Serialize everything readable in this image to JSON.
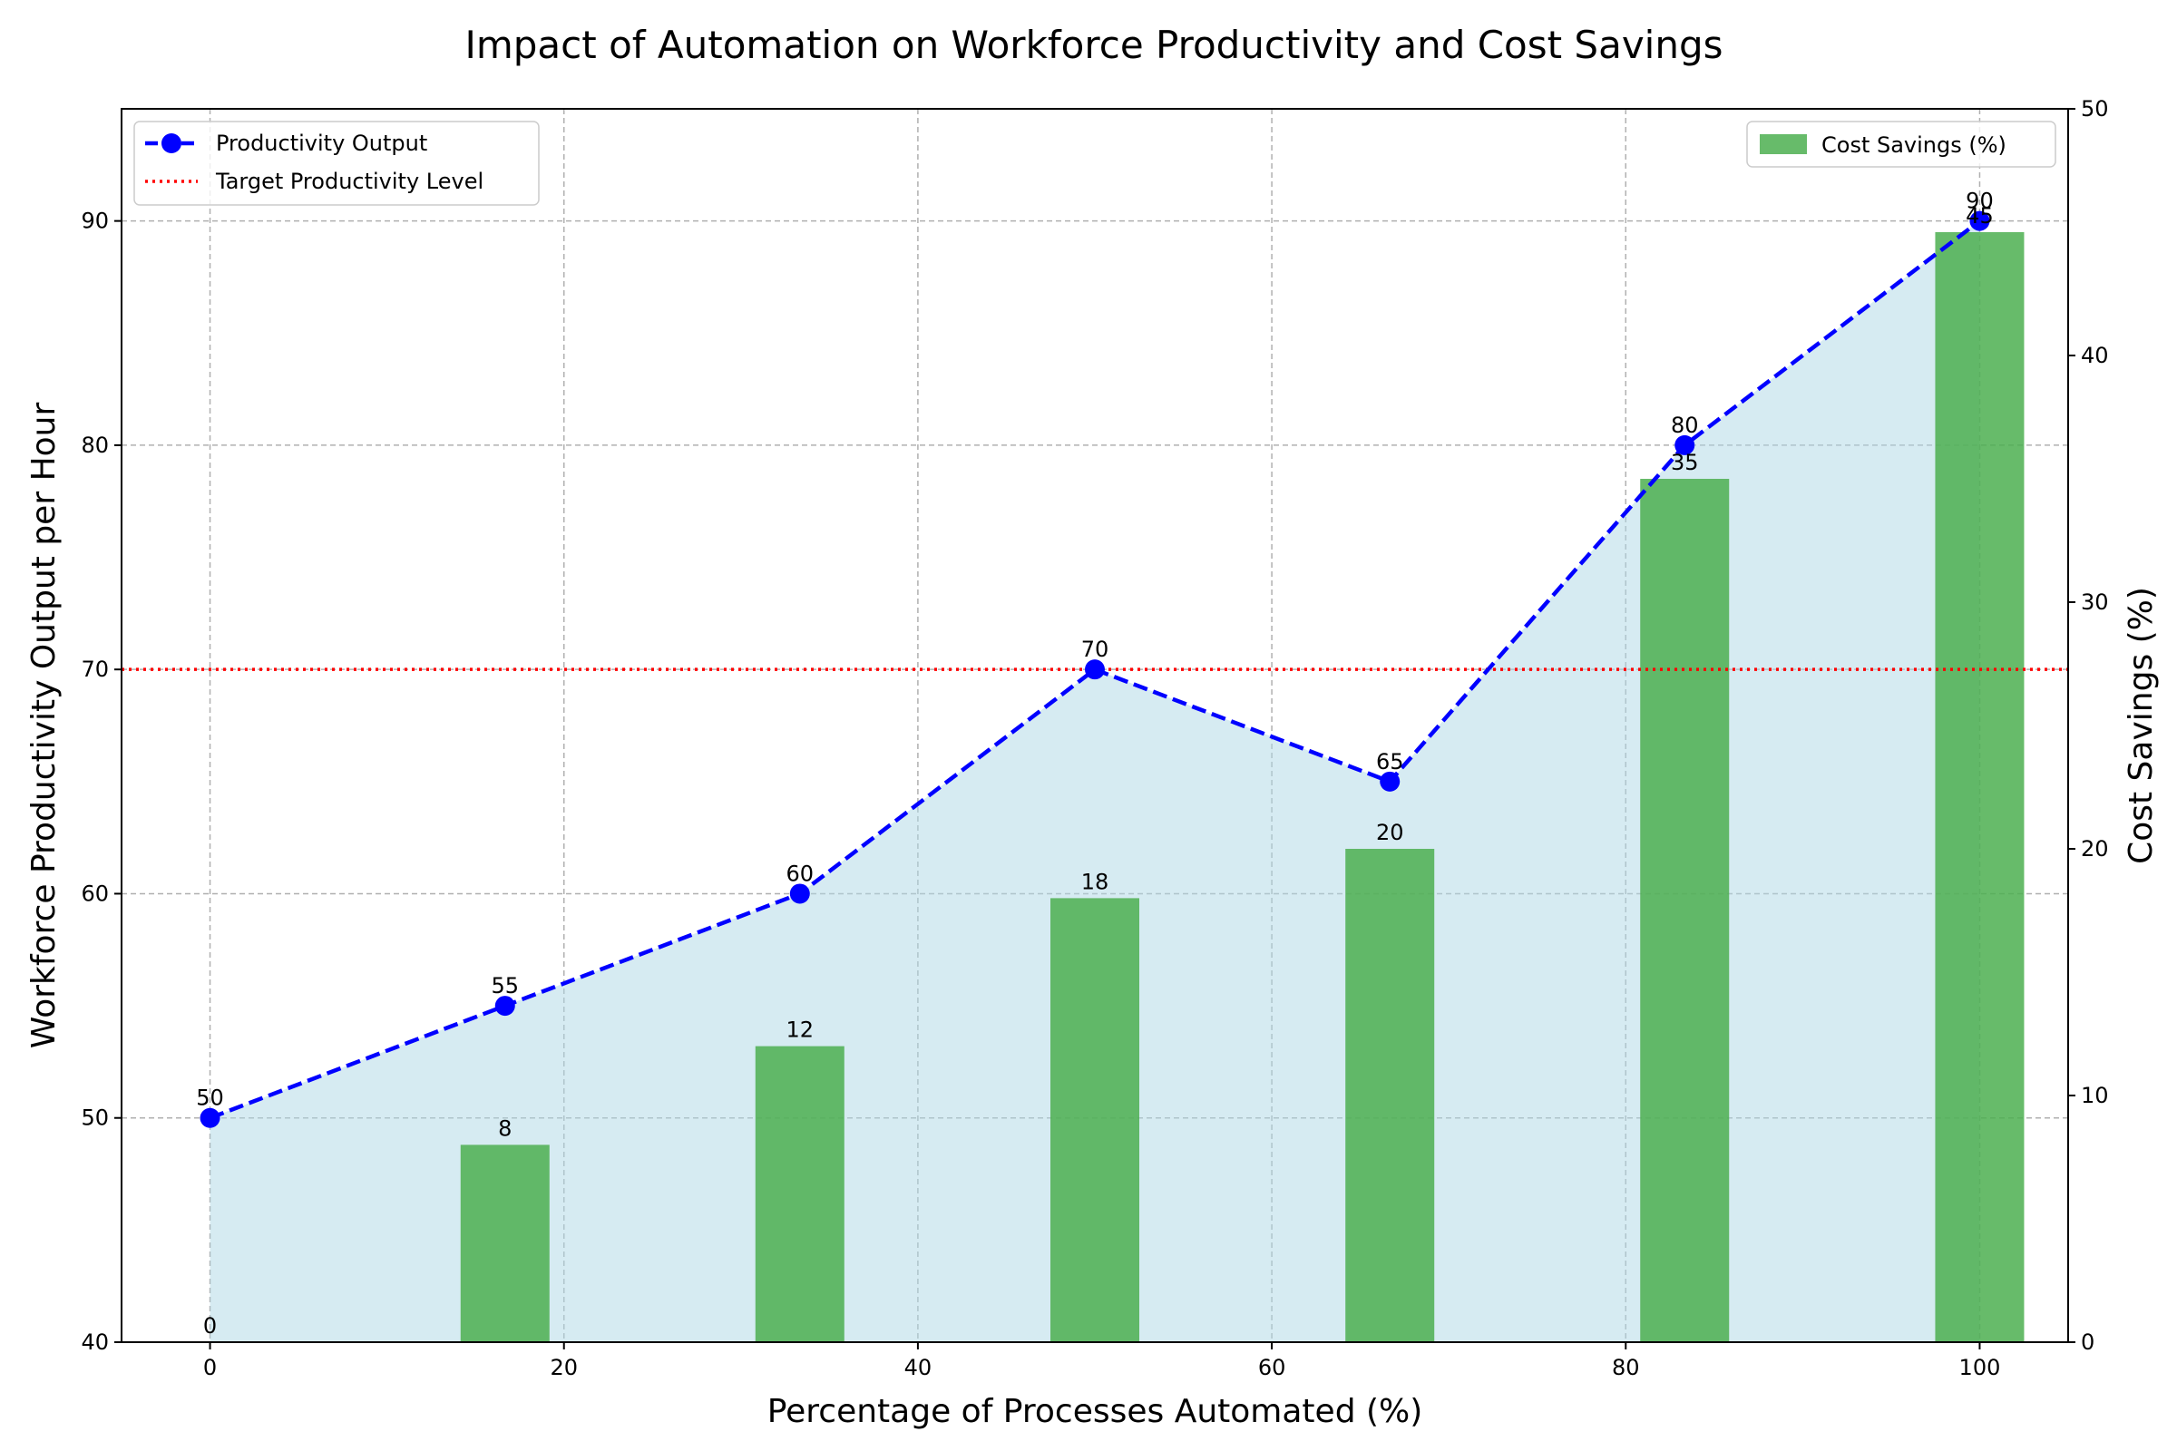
{
  "chart_data": {
    "type": "line",
    "title": "Impact of Automation on Workforce Productivity and Cost Savings",
    "xlabel": "Percentage of Processes Automated (%)",
    "ylabel": "Workforce Productivity Output per Hour",
    "y2label": "Cost Savings (%)",
    "x": [
      0,
      16.67,
      33.33,
      50,
      66.67,
      83.33,
      100
    ],
    "xlim": [
      -5,
      105
    ],
    "ylim": [
      40,
      95
    ],
    "y2lim": [
      0,
      50
    ],
    "xticks": [
      0,
      20,
      40,
      60,
      80,
      100
    ],
    "yticks": [
      40,
      50,
      60,
      70,
      80,
      90
    ],
    "y2ticks": [
      0,
      10,
      20,
      30,
      40,
      50
    ],
    "grid": true,
    "series": [
      {
        "name": "Productivity Output",
        "type": "line",
        "axis": "left",
        "values": [
          50,
          55,
          60,
          70,
          65,
          80,
          90
        ],
        "color": "#0000ff",
        "style": "dashed",
        "marker": "circle",
        "fill_color": "#add8e6"
      },
      {
        "name": "Cost Savings (%)",
        "type": "bar",
        "axis": "right",
        "values": [
          0,
          8,
          12,
          18,
          20,
          35,
          45
        ],
        "color": "#4caf50"
      },
      {
        "name": "Target Productivity Level",
        "type": "hline",
        "axis": "left",
        "value": 70,
        "color": "#ff0000",
        "style": "dotted"
      }
    ],
    "legends": [
      {
        "placement": "upper-left",
        "entries": [
          "Productivity Output",
          "Target Productivity Level"
        ]
      },
      {
        "placement": "upper-right",
        "entries": [
          "Cost Savings (%)"
        ]
      }
    ]
  }
}
